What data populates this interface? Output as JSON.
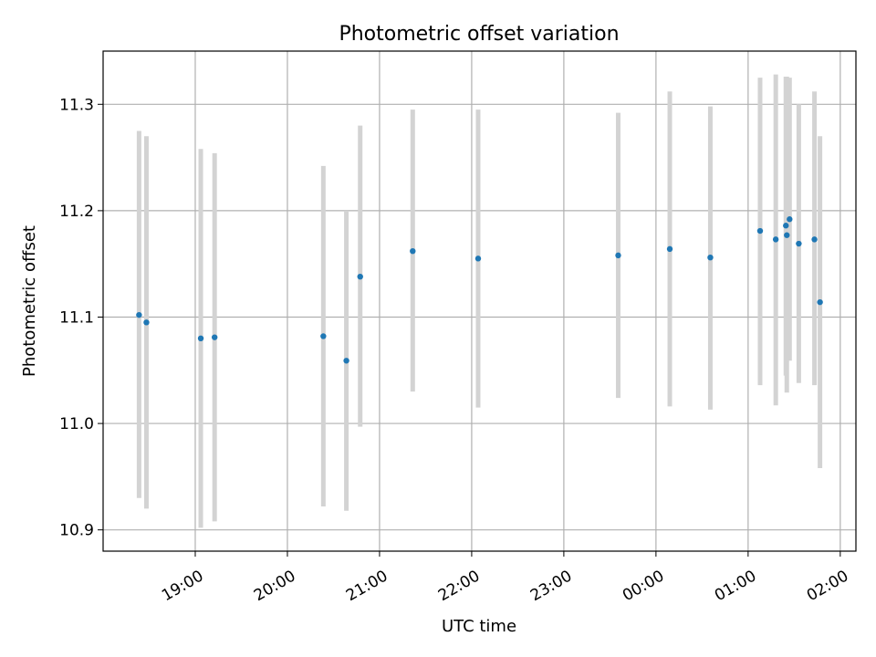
{
  "chart_data": {
    "type": "scatter",
    "title": "Photometric offset variation",
    "xlabel": "UTC time",
    "ylabel": "Photometric offset",
    "x_axis": {
      "min": 18.0,
      "max": 26.17,
      "ticks": [
        19,
        20,
        21,
        22,
        23,
        24,
        25,
        26
      ],
      "tick_labels": [
        "19:00",
        "20:00",
        "21:00",
        "22:00",
        "23:00",
        "00:00",
        "01:00",
        "02:00"
      ]
    },
    "y_axis": {
      "min": 10.88,
      "max": 11.35,
      "ticks": [
        10.9,
        11.0,
        11.1,
        11.2,
        11.3
      ],
      "tick_labels": [
        "10.9",
        "11.0",
        "11.1",
        "11.2",
        "11.3"
      ]
    },
    "grid": true,
    "colors": {
      "points": "#1f77b4",
      "errorbars": "#d3d3d3",
      "grid": "#b0b0b0"
    },
    "points": [
      {
        "x": 18.39,
        "y": 11.102,
        "ylow": 10.93,
        "yhigh": 11.275
      },
      {
        "x": 18.47,
        "y": 11.095,
        "ylow": 10.92,
        "yhigh": 11.27
      },
      {
        "x": 19.06,
        "y": 11.08,
        "ylow": 10.902,
        "yhigh": 11.258
      },
      {
        "x": 19.21,
        "y": 11.081,
        "ylow": 10.908,
        "yhigh": 11.254
      },
      {
        "x": 20.39,
        "y": 11.082,
        "ylow": 10.922,
        "yhigh": 11.242
      },
      {
        "x": 20.64,
        "y": 11.059,
        "ylow": 10.918,
        "yhigh": 11.2
      },
      {
        "x": 20.79,
        "y": 11.138,
        "ylow": 10.997,
        "yhigh": 11.28
      },
      {
        "x": 21.36,
        "y": 11.162,
        "ylow": 11.03,
        "yhigh": 11.295
      },
      {
        "x": 22.07,
        "y": 11.155,
        "ylow": 11.015,
        "yhigh": 11.295
      },
      {
        "x": 23.59,
        "y": 11.158,
        "ylow": 11.024,
        "yhigh": 11.292
      },
      {
        "x": 24.15,
        "y": 11.164,
        "ylow": 11.016,
        "yhigh": 11.312
      },
      {
        "x": 24.59,
        "y": 11.156,
        "ylow": 11.013,
        "yhigh": 11.298
      },
      {
        "x": 25.13,
        "y": 11.181,
        "ylow": 11.036,
        "yhigh": 11.325
      },
      {
        "x": 25.3,
        "y": 11.173,
        "ylow": 11.017,
        "yhigh": 11.328
      },
      {
        "x": 25.41,
        "y": 11.186,
        "ylow": 11.045,
        "yhigh": 11.326
      },
      {
        "x": 25.42,
        "y": 11.177,
        "ylow": 11.029,
        "yhigh": 11.326
      },
      {
        "x": 25.45,
        "y": 11.192,
        "ylow": 11.059,
        "yhigh": 11.325
      },
      {
        "x": 25.55,
        "y": 11.169,
        "ylow": 11.038,
        "yhigh": 11.3
      },
      {
        "x": 25.72,
        "y": 11.173,
        "ylow": 11.036,
        "yhigh": 11.312
      },
      {
        "x": 25.78,
        "y": 11.114,
        "ylow": 10.958,
        "yhigh": 11.27
      }
    ]
  }
}
